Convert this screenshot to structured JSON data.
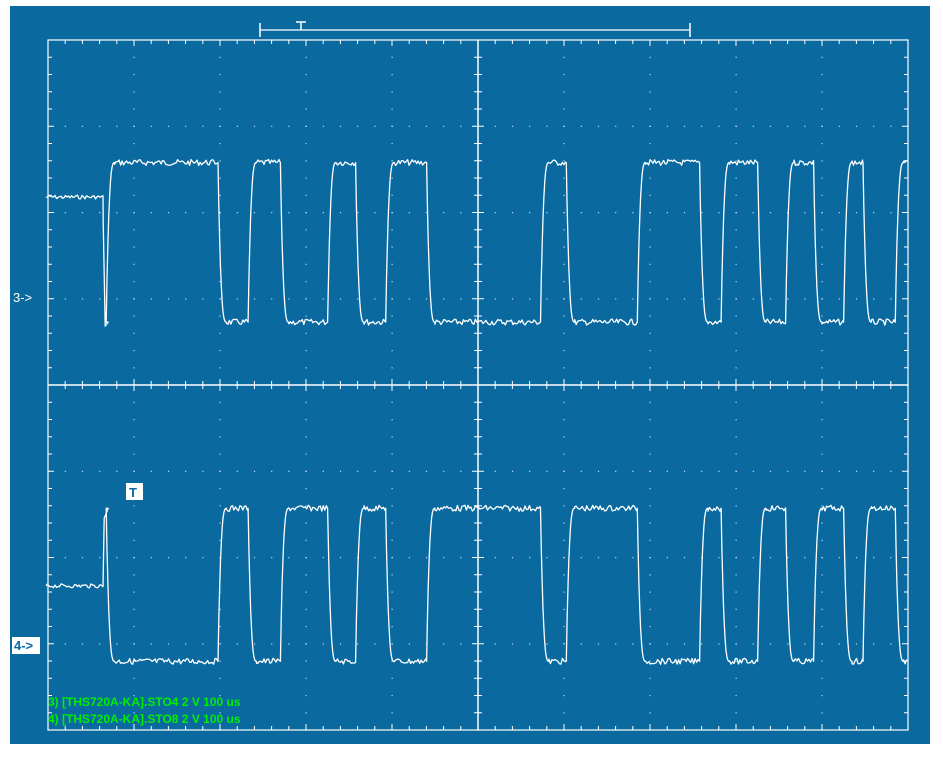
{
  "colors": {
    "screen_bg": "#0a6aa0",
    "trace": "#ffffff",
    "grid": "#ffffff",
    "readout_text": "#00ee00"
  },
  "channel_markers": {
    "ch3": "3->",
    "ch4": "4->"
  },
  "trigger_marker": "T",
  "readouts": [
    "3) [THS720A-KA].STO4  2  V   100 us",
    "4) [THS720A-KA].STO8  2  V   100 us"
  ],
  "chart_data": {
    "type": "line",
    "title": "",
    "xlabel": "",
    "ylabel": "",
    "grid": true,
    "x_divisions": 10,
    "y_divisions": 8,
    "time_per_div": "100 us",
    "volts_per_div": "2 V",
    "series": [
      {
        "name": "3) [THS720A-KA].STO4",
        "low_div": -2.6,
        "high_div": 1.1,
        "idle_div": 0.3,
        "pre_trigger_dip_div": -2.6,
        "transitions_div": [
          1.4,
          4.0,
          4.7,
          5.45,
          6.55,
          7.2,
          7.9,
          8.85,
          11.5,
          12.1,
          13.75,
          15.2,
          15.7,
          16.55,
          17.2,
          17.85,
          18.55,
          19.0,
          19.75
        ]
      },
      {
        "name": "4) [THS720A-KA].STO8",
        "low_div": -2.35,
        "high_div": 1.2,
        "idle_div": -0.6,
        "pre_trigger_peak_div": 1.2,
        "transitions_div": [
          1.4,
          4.0,
          4.7,
          5.45,
          6.55,
          7.2,
          7.9,
          8.85,
          11.5,
          12.1,
          13.75,
          15.2,
          15.7,
          16.55,
          17.2,
          17.85,
          18.55,
          19.0,
          19.75
        ]
      }
    ]
  }
}
